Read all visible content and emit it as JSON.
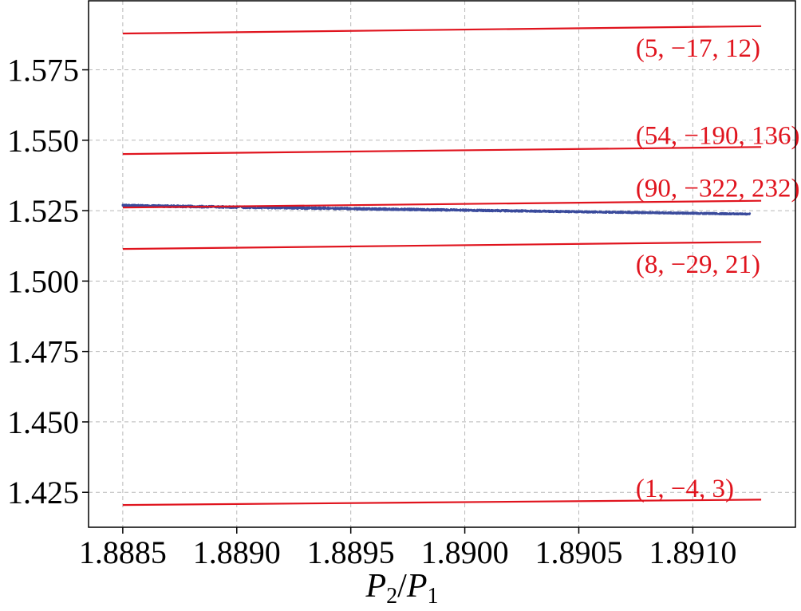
{
  "chart_data": {
    "type": "line",
    "xlabel": {
      "main": "P",
      "sub1": "2",
      "slash": "/",
      "main2": "P",
      "sub2": "1"
    },
    "ylabel": "",
    "xlim": [
      1.88835,
      1.89145
    ],
    "ylim": [
      1.4126,
      1.5995
    ],
    "x_ticks": [
      1.8885,
      1.889,
      1.8895,
      1.89,
      1.8905,
      1.891
    ],
    "x_tick_labels": [
      "1.8885",
      "1.8890",
      "1.8895",
      "1.8900",
      "1.8905",
      "1.8910"
    ],
    "y_ticks": [
      1.425,
      1.45,
      1.475,
      1.5,
      1.525,
      1.55,
      1.575
    ],
    "y_tick_labels": [
      "1.425",
      "1.450",
      "1.475",
      "1.500",
      "1.525",
      "1.550",
      "1.575"
    ],
    "grid": true,
    "line_color": "#e0141e",
    "scatter_color": "#3a4b9c",
    "series": [
      {
        "name": "(5, −17, 12)",
        "x": [
          1.8885,
          1.8913
        ],
        "y": [
          1.5879,
          1.5905
        ],
        "label_x": 1.89075,
        "label_y": 1.5825
      },
      {
        "name": "(54, −190, 136)",
        "x": [
          1.8885,
          1.8913
        ],
        "y": [
          1.5451,
          1.5476
        ],
        "label_x": 1.89075,
        "label_y": 1.5515
      },
      {
        "name": "(90, −322, 232)",
        "x": [
          1.8885,
          1.8913
        ],
        "y": [
          1.5261,
          1.5285
        ],
        "label_x": 1.89075,
        "label_y": 1.5328
      },
      {
        "name": "(8, −29, 21)",
        "x": [
          1.8885,
          1.8913
        ],
        "y": [
          1.5114,
          1.5139
        ],
        "label_x": 1.89075,
        "label_y": 1.5058
      },
      {
        "name": "(1, −4, 3)",
        "x": [
          1.8885,
          1.8913
        ],
        "y": [
          1.4205,
          1.4224
        ],
        "label_x": 1.89075,
        "label_y": 1.4262
      }
    ],
    "scatter_band": {
      "x_range": [
        1.8885,
        1.89125
      ],
      "y_start": 1.5268,
      "y_end": 1.5238,
      "spread_start": 0.0007,
      "spread_end": 0.0004
    }
  }
}
